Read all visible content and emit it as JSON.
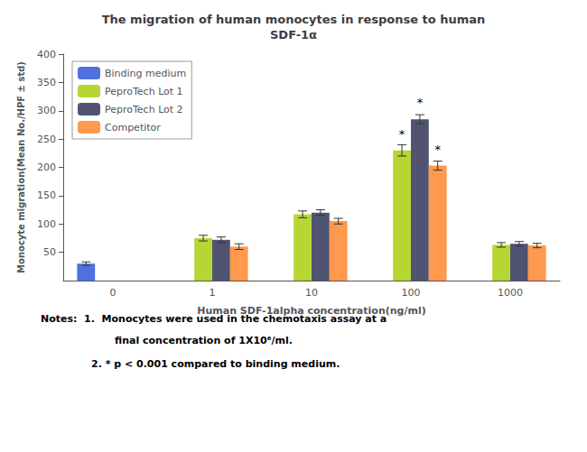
{
  "chart_data": {
    "type": "bar",
    "title": "The migration of human monocytes in response to human\nSDF-1α",
    "x_label": "Human SDF-1alpha concentration(ng/ml)",
    "y_label": "Monocyte migration(Mean No./HPF ± std)",
    "categories": [
      "0",
      "1",
      "10",
      "100",
      "1000"
    ],
    "series": [
      {
        "name": "Binding medium",
        "values": [
          30,
          null,
          null,
          null,
          null
        ],
        "errors": [
          3,
          null,
          null,
          null,
          null
        ]
      },
      {
        "name": "PeproTech Lot 1",
        "values": [
          null,
          75,
          117,
          230,
          63
        ],
        "errors": [
          null,
          5,
          6,
          10,
          4
        ]
      },
      {
        "name": "PeproTech Lot 2",
        "values": [
          null,
          72,
          120,
          285,
          65
        ],
        "errors": [
          null,
          5,
          5,
          8,
          4
        ]
      },
      {
        "name": "Competitor",
        "values": [
          null,
          60,
          105,
          203,
          62
        ],
        "errors": [
          null,
          5,
          5,
          8,
          4
        ]
      }
    ],
    "ylim": [
      0,
      400
    ],
    "yticks": [
      50,
      100,
      150,
      200,
      250,
      300,
      350,
      400
    ],
    "grid": false,
    "legend": "upper left",
    "annotations": [
      {
        "text": "*",
        "series": "PeproTech Lot 1",
        "category": "100"
      },
      {
        "text": "*",
        "series": "PeproTech Lot 2",
        "category": "100"
      },
      {
        "text": "*",
        "series": "Competitor",
        "category": "100"
      }
    ],
    "notes": [
      "Notes:  1.  Monocytes were used in the chemotaxis assay at a",
      "final concentration of 1X10⁶/ml.",
      "2. * p < 0.001 compared to binding medium."
    ]
  }
}
